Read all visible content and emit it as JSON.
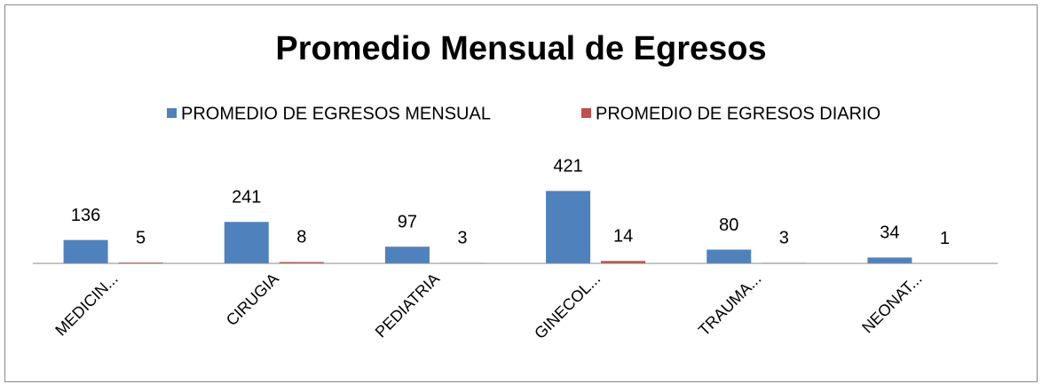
{
  "chart_data": {
    "type": "bar",
    "title": "Promedio Mensual de Egresos",
    "categories": [
      "MEDICIN...",
      "CIRUGIA",
      "PEDIATRIA",
      "GINECOL...",
      "TRAUMA...",
      "NEONAT..."
    ],
    "series": [
      {
        "name": "PROMEDIO DE EGRESOS MENSUAL",
        "color": "#4f81bd",
        "values": [
          136,
          241,
          97,
          421,
          80,
          34
        ]
      },
      {
        "name": "PROMEDIO DE EGRESOS DIARIO",
        "color": "#c0504d",
        "values": [
          5,
          8,
          3,
          14,
          3,
          1
        ]
      }
    ],
    "ylim": [
      0,
      500
    ],
    "grid": false,
    "legend": "top"
  }
}
